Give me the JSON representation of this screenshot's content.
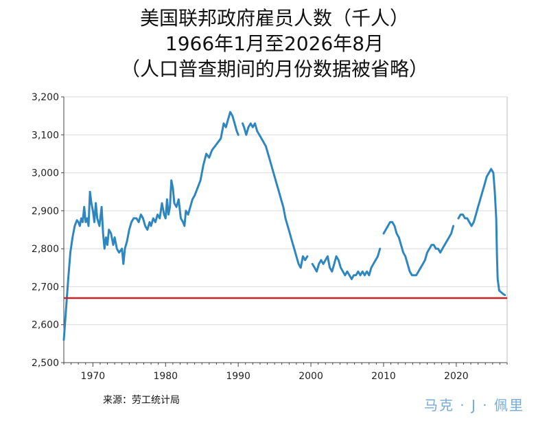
{
  "chart_data": {
    "type": "line",
    "title": "美国联邦政府雇员人数（千人）",
    "subtitle": "1966年1月至2026年8月",
    "note": "（人口普查期间的月份数据被省略）",
    "xlabel": "",
    "ylabel": "",
    "xlim": [
      1966,
      2027
    ],
    "ylim": [
      2500,
      3200
    ],
    "y_ticks": [
      "2,500",
      "2,600",
      "2,700",
      "2,800",
      "2,900",
      "3,000",
      "3,100",
      "3,200"
    ],
    "x_ticks": [
      "1970",
      "1980",
      "1990",
      "2000",
      "2010",
      "2020"
    ],
    "grid": "horizontal",
    "line_color": "#2e86c1",
    "reference_line": {
      "y": 2670,
      "color": "#cc2222"
    },
    "series": [
      {
        "segments": [
          [
            [
              1966.0,
              2560
            ],
            [
              1966.3,
              2640
            ],
            [
              1966.6,
              2720
            ],
            [
              1966.9,
              2790
            ],
            [
              1967.2,
              2830
            ],
            [
              1967.5,
              2860
            ],
            [
              1967.8,
              2875
            ],
            [
              1968.0,
              2870
            ],
            [
              1968.2,
              2860
            ],
            [
              1968.4,
              2880
            ],
            [
              1968.6,
              2870
            ],
            [
              1968.8,
              2910
            ],
            [
              1969.0,
              2870
            ],
            [
              1969.2,
              2880
            ],
            [
              1969.4,
              2860
            ],
            [
              1969.6,
              2950
            ],
            [
              1969.8,
              2920
            ],
            [
              1970.0,
              2900
            ],
            [
              1970.2,
              2870
            ],
            [
              1970.4,
              2920
            ],
            [
              1970.6,
              2880
            ],
            [
              1970.9,
              2860
            ],
            [
              1971.2,
              2910
            ],
            [
              1971.4,
              2840
            ],
            [
              1971.6,
              2800
            ],
            [
              1971.8,
              2830
            ],
            [
              1972.0,
              2810
            ],
            [
              1972.2,
              2850
            ],
            [
              1972.5,
              2840
            ],
            [
              1972.8,
              2810
            ],
            [
              1973.0,
              2830
            ],
            [
              1973.3,
              2800
            ],
            [
              1973.6,
              2790
            ],
            [
              1974.0,
              2800
            ],
            [
              1974.2,
              2760
            ],
            [
              1974.4,
              2800
            ],
            [
              1974.7,
              2820
            ],
            [
              1975.0,
              2850
            ],
            [
              1975.3,
              2870
            ],
            [
              1975.6,
              2880
            ],
            [
              1976.0,
              2880
            ],
            [
              1976.3,
              2870
            ],
            [
              1976.6,
              2890
            ],
            [
              1976.9,
              2880
            ],
            [
              1977.2,
              2860
            ],
            [
              1977.5,
              2850
            ],
            [
              1977.8,
              2870
            ],
            [
              1978.0,
              2860
            ],
            [
              1978.3,
              2880
            ],
            [
              1978.6,
              2870
            ],
            [
              1978.9,
              2890
            ],
            [
              1979.2,
              2880
            ],
            [
              1979.5,
              2920
            ],
            [
              1979.8,
              2890
            ],
            [
              1980.0,
              2880
            ],
            [
              1980.2,
              2930
            ],
            [
              1980.4,
              2890
            ],
            [
              1980.6,
              2910
            ],
            [
              1980.8,
              2980
            ],
            [
              1981.0,
              2960
            ],
            [
              1981.2,
              2920
            ],
            [
              1981.5,
              2910
            ],
            [
              1981.8,
              2930
            ],
            [
              1982.1,
              2880
            ],
            [
              1982.4,
              2870
            ],
            [
              1982.6,
              2860
            ],
            [
              1982.8,
              2900
            ],
            [
              1983.1,
              2890
            ],
            [
              1983.4,
              2910
            ],
            [
              1983.7,
              2930
            ],
            [
              1984.0,
              2940
            ],
            [
              1984.4,
              2960
            ],
            [
              1984.8,
              2980
            ],
            [
              1985.2,
              3020
            ],
            [
              1985.6,
              3050
            ],
            [
              1986.0,
              3040
            ],
            [
              1986.4,
              3060
            ],
            [
              1986.8,
              3070
            ],
            [
              1987.2,
              3080
            ],
            [
              1987.6,
              3090
            ],
            [
              1988.0,
              3130
            ],
            [
              1988.3,
              3120
            ],
            [
              1988.6,
              3140
            ],
            [
              1988.9,
              3160
            ],
            [
              1989.2,
              3150
            ],
            [
              1989.5,
              3130
            ],
            [
              1989.8,
              3110
            ],
            [
              1990.0,
              3100
            ]
          ],
          [
            [
              1990.6,
              3130
            ],
            [
              1990.8,
              3120
            ],
            [
              1991.1,
              3100
            ],
            [
              1991.4,
              3120
            ],
            [
              1991.7,
              3130
            ],
            [
              1992.0,
              3120
            ],
            [
              1992.3,
              3130
            ],
            [
              1992.6,
              3110
            ],
            [
              1992.9,
              3100
            ],
            [
              1993.2,
              3090
            ],
            [
              1993.5,
              3080
            ],
            [
              1993.8,
              3070
            ],
            [
              1994.1,
              3050
            ],
            [
              1994.4,
              3030
            ],
            [
              1994.7,
              3010
            ],
            [
              1995.0,
              2990
            ],
            [
              1995.3,
              2970
            ],
            [
              1995.6,
              2950
            ],
            [
              1995.9,
              2930
            ],
            [
              1996.2,
              2910
            ],
            [
              1996.5,
              2880
            ],
            [
              1996.8,
              2860
            ],
            [
              1997.1,
              2840
            ],
            [
              1997.4,
              2820
            ],
            [
              1997.7,
              2800
            ],
            [
              1998.0,
              2780
            ],
            [
              1998.3,
              2760
            ],
            [
              1998.6,
              2750
            ],
            [
              1998.9,
              2780
            ],
            [
              1999.2,
              2770
            ],
            [
              1999.5,
              2780
            ]
          ],
          [
            [
              2000.2,
              2760
            ],
            [
              2000.5,
              2750
            ],
            [
              2000.8,
              2740
            ],
            [
              2001.1,
              2760
            ],
            [
              2001.4,
              2770
            ],
            [
              2001.7,
              2760
            ],
            [
              2002.0,
              2770
            ],
            [
              2002.3,
              2780
            ],
            [
              2002.6,
              2750
            ],
            [
              2002.9,
              2740
            ],
            [
              2003.2,
              2760
            ],
            [
              2003.5,
              2780
            ],
            [
              2003.8,
              2770
            ],
            [
              2004.1,
              2750
            ],
            [
              2004.4,
              2740
            ],
            [
              2004.7,
              2730
            ],
            [
              2005.0,
              2740
            ],
            [
              2005.3,
              2730
            ],
            [
              2005.6,
              2720
            ],
            [
              2005.9,
              2730
            ],
            [
              2006.2,
              2730
            ],
            [
              2006.5,
              2740
            ],
            [
              2006.8,
              2730
            ],
            [
              2007.1,
              2740
            ],
            [
              2007.4,
              2730
            ],
            [
              2007.7,
              2740
            ],
            [
              2008.0,
              2730
            ],
            [
              2008.3,
              2750
            ],
            [
              2008.6,
              2760
            ],
            [
              2008.9,
              2770
            ],
            [
              2009.2,
              2780
            ],
            [
              2009.5,
              2800
            ]
          ],
          [
            [
              2010.0,
              2840
            ],
            [
              2010.3,
              2850
            ],
            [
              2010.6,
              2860
            ],
            [
              2010.9,
              2870
            ],
            [
              2011.2,
              2870
            ],
            [
              2011.5,
              2860
            ],
            [
              2011.8,
              2840
            ],
            [
              2012.1,
              2830
            ],
            [
              2012.4,
              2810
            ],
            [
              2012.7,
              2790
            ],
            [
              2013.0,
              2780
            ],
            [
              2013.3,
              2760
            ],
            [
              2013.6,
              2740
            ],
            [
              2013.9,
              2730
            ],
            [
              2014.2,
              2730
            ],
            [
              2014.5,
              2730
            ],
            [
              2014.8,
              2740
            ],
            [
              2015.1,
              2750
            ],
            [
              2015.4,
              2760
            ],
            [
              2015.7,
              2770
            ],
            [
              2016.0,
              2790
            ],
            [
              2016.3,
              2800
            ],
            [
              2016.6,
              2810
            ],
            [
              2016.9,
              2810
            ],
            [
              2017.2,
              2800
            ],
            [
              2017.5,
              2800
            ],
            [
              2017.8,
              2790
            ],
            [
              2018.1,
              2800
            ],
            [
              2018.4,
              2810
            ],
            [
              2018.7,
              2820
            ],
            [
              2019.0,
              2830
            ],
            [
              2019.3,
              2840
            ],
            [
              2019.6,
              2860
            ]
          ],
          [
            [
              2020.3,
              2880
            ],
            [
              2020.6,
              2890
            ],
            [
              2020.9,
              2890
            ],
            [
              2021.2,
              2880
            ],
            [
              2021.5,
              2880
            ],
            [
              2021.8,
              2870
            ],
            [
              2022.1,
              2860
            ],
            [
              2022.4,
              2870
            ],
            [
              2022.7,
              2890
            ],
            [
              2023.0,
              2910
            ],
            [
              2023.3,
              2930
            ],
            [
              2023.6,
              2950
            ],
            [
              2023.9,
              2970
            ],
            [
              2024.2,
              2990
            ],
            [
              2024.5,
              3000
            ],
            [
              2024.8,
              3010
            ],
            [
              2025.1,
              3000
            ],
            [
              2025.3,
              2950
            ],
            [
              2025.5,
              2880
            ],
            [
              2025.6,
              2780
            ],
            [
              2025.7,
              2720
            ],
            [
              2025.9,
              2690
            ],
            [
              2026.2,
              2685
            ],
            [
              2026.5,
              2680
            ],
            [
              2026.7,
              2678
            ]
          ]
        ]
      }
    ]
  },
  "footer": {
    "source": "来源：劳工统计局",
    "watermark": "马克 · J · 佩里"
  }
}
